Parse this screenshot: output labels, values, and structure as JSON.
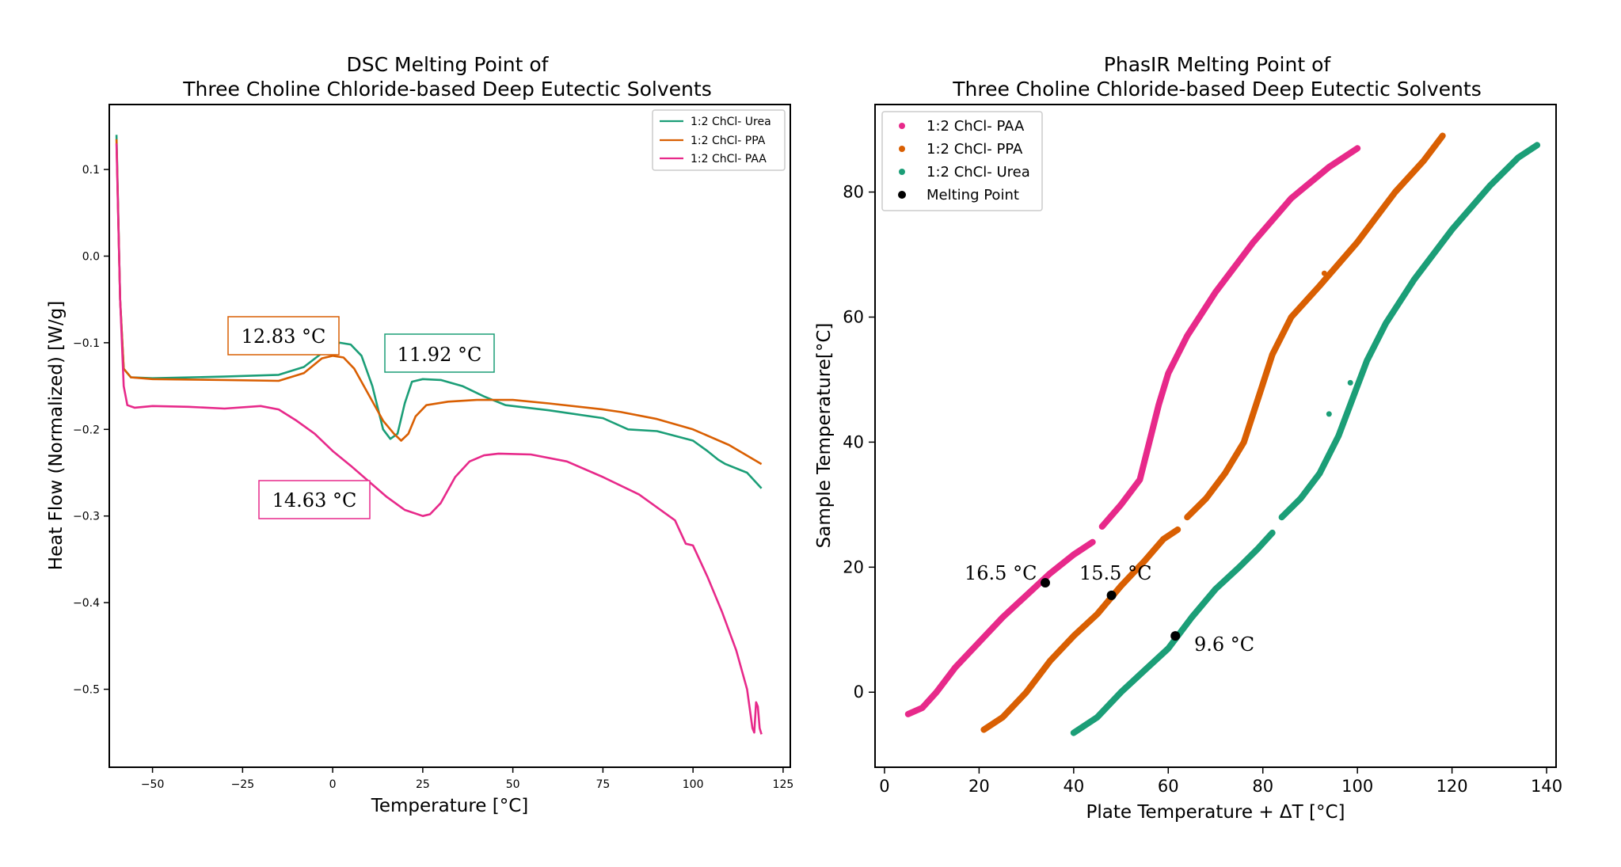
{
  "chart_data": [
    {
      "type": "line",
      "title": [
        "DSC Melting Point of",
        "Three Choline Chloride-based Deep Eutectic Solvents"
      ],
      "xlabel": "Temperature [°C]",
      "ylabel": "Heat Flow (Normalized) [W/g]",
      "xlim": [
        -62,
        127
      ],
      "ylim": [
        -0.59,
        0.175
      ],
      "xticks": [
        -50,
        -25,
        0,
        25,
        50,
        75,
        100,
        125
      ],
      "xtick_labels": [
        "−50",
        "−25",
        "0",
        "25",
        "50",
        "75",
        "100",
        "125"
      ],
      "yticks": [
        0.1,
        0.0,
        -0.1,
        -0.2,
        -0.3,
        -0.4,
        -0.5
      ],
      "ytick_labels": [
        "0.1",
        "0.0",
        "−0.1",
        "−0.2",
        "−0.3",
        "−0.4",
        "−0.5"
      ],
      "grid": false,
      "legend_position": "top-right",
      "series": [
        {
          "name": "1:2 ChCl- Urea",
          "color": "#1b9e77",
          "points": [
            [
              -60,
              0.14
            ],
            [
              -59,
              -0.05
            ],
            [
              -58,
              -0.13
            ],
            [
              -56,
              -0.14
            ],
            [
              -50,
              -0.141
            ],
            [
              -30,
              -0.139
            ],
            [
              -15,
              -0.137
            ],
            [
              -8,
              -0.128
            ],
            [
              -3,
              -0.112
            ],
            [
              0,
              -0.103
            ],
            [
              2,
              -0.1
            ],
            [
              5,
              -0.102
            ],
            [
              8,
              -0.115
            ],
            [
              11,
              -0.15
            ],
            [
              14,
              -0.2
            ],
            [
              16,
              -0.211
            ],
            [
              18,
              -0.205
            ],
            [
              20,
              -0.17
            ],
            [
              22,
              -0.145
            ],
            [
              25,
              -0.142
            ],
            [
              30,
              -0.143
            ],
            [
              36,
              -0.15
            ],
            [
              42,
              -0.162
            ],
            [
              48,
              -0.172
            ],
            [
              60,
              -0.178
            ],
            [
              75,
              -0.187
            ],
            [
              82,
              -0.2
            ],
            [
              90,
              -0.202
            ],
            [
              100,
              -0.213
            ],
            [
              104,
              -0.225
            ],
            [
              107,
              -0.235
            ],
            [
              109,
              -0.24
            ],
            [
              115,
              -0.25
            ],
            [
              119,
              -0.268
            ]
          ]
        },
        {
          "name": "1:2 ChCl- PPA",
          "color": "#d95f02",
          "points": [
            [
              -60,
              0.135
            ],
            [
              -59,
              -0.05
            ],
            [
              -58,
              -0.13
            ],
            [
              -56,
              -0.14
            ],
            [
              -50,
              -0.142
            ],
            [
              -30,
              -0.143
            ],
            [
              -15,
              -0.144
            ],
            [
              -8,
              -0.135
            ],
            [
              -3,
              -0.118
            ],
            [
              0,
              -0.115
            ],
            [
              3,
              -0.117
            ],
            [
              6,
              -0.13
            ],
            [
              10,
              -0.16
            ],
            [
              14,
              -0.19
            ],
            [
              17,
              -0.205
            ],
            [
              19,
              -0.213
            ],
            [
              21,
              -0.205
            ],
            [
              23,
              -0.185
            ],
            [
              26,
              -0.172
            ],
            [
              32,
              -0.168
            ],
            [
              40,
              -0.166
            ],
            [
              50,
              -0.166
            ],
            [
              60,
              -0.17
            ],
            [
              75,
              -0.177
            ],
            [
              80,
              -0.18
            ],
            [
              90,
              -0.188
            ],
            [
              100,
              -0.2
            ],
            [
              110,
              -0.218
            ],
            [
              119,
              -0.24
            ]
          ]
        },
        {
          "name": "1:2 ChCl- PAA",
          "color": "#e7298a",
          "points": [
            [
              -60,
              0.13
            ],
            [
              -59,
              -0.05
            ],
            [
              -58,
              -0.15
            ],
            [
              -57,
              -0.172
            ],
            [
              -55,
              -0.175
            ],
            [
              -50,
              -0.173
            ],
            [
              -40,
              -0.174
            ],
            [
              -30,
              -0.176
            ],
            [
              -20,
              -0.173
            ],
            [
              -15,
              -0.177
            ],
            [
              -10,
              -0.19
            ],
            [
              -5,
              -0.205
            ],
            [
              0,
              -0.225
            ],
            [
              5,
              -0.242
            ],
            [
              10,
              -0.26
            ],
            [
              15,
              -0.278
            ],
            [
              20,
              -0.293
            ],
            [
              25,
              -0.3
            ],
            [
              27,
              -0.298
            ],
            [
              30,
              -0.285
            ],
            [
              34,
              -0.255
            ],
            [
              38,
              -0.237
            ],
            [
              42,
              -0.23
            ],
            [
              46,
              -0.228
            ],
            [
              55,
              -0.229
            ],
            [
              65,
              -0.237
            ],
            [
              75,
              -0.255
            ],
            [
              85,
              -0.275
            ],
            [
              95,
              -0.305
            ],
            [
              98,
              -0.332
            ],
            [
              100,
              -0.334
            ],
            [
              104,
              -0.37
            ],
            [
              108,
              -0.41
            ],
            [
              112,
              -0.455
            ],
            [
              115,
              -0.5
            ],
            [
              116.5,
              -0.545
            ],
            [
              117,
              -0.55
            ],
            [
              117.5,
              -0.515
            ],
            [
              118,
              -0.52
            ],
            [
              118.5,
              -0.545
            ],
            [
              119,
              -0.552
            ]
          ]
        }
      ],
      "annotations": [
        {
          "text": "12.83 °C",
          "color": "#d95f02"
        },
        {
          "text": "11.92 °C",
          "color": "#1b9e77"
        },
        {
          "text": "14.63 °C",
          "color": "#e7298a"
        }
      ]
    },
    {
      "type": "scatter",
      "title": [
        "PhasIR Melting Point of",
        "Three Choline Chloride-based Deep Eutectic Solvents"
      ],
      "xlabel": "Plate Temperature + ΔT [°C]",
      "ylabel": "Sample Temperature[°C]",
      "xlim": [
        -2,
        142
      ],
      "ylim": [
        -12,
        94
      ],
      "xticks": [
        0,
        20,
        40,
        60,
        80,
        100,
        120,
        140
      ],
      "xtick_labels": [
        "0",
        "20",
        "40",
        "60",
        "80",
        "100",
        "120",
        "140"
      ],
      "yticks": [
        0,
        20,
        40,
        60,
        80
      ],
      "ytick_labels": [
        "0",
        "20",
        "40",
        "60",
        "80"
      ],
      "grid": false,
      "legend_position": "top-left",
      "series": [
        {
          "name": "1:2 ChCl- PAA",
          "color": "#e7298a",
          "segments": [
            [
              [
                5,
                -3.5
              ],
              [
                8,
                -2.5
              ],
              [
                11,
                0
              ],
              [
                15,
                4
              ],
              [
                20,
                8
              ],
              [
                25,
                12
              ],
              [
                30,
                15.5
              ],
              [
                35,
                19
              ],
              [
                40,
                22
              ],
              [
                44,
                24
              ]
            ],
            [
              [
                46,
                26.5
              ],
              [
                50,
                30
              ],
              [
                54,
                34
              ],
              [
                56,
                40
              ],
              [
                58,
                46
              ],
              [
                60,
                51
              ],
              [
                64,
                57
              ],
              [
                70,
                64
              ],
              [
                78,
                72
              ],
              [
                86,
                79
              ],
              [
                94,
                84
              ],
              [
                100,
                87
              ]
            ]
          ]
        },
        {
          "name": "1:2 ChCl- PPA",
          "color": "#d95f02",
          "segments": [
            [
              [
                21,
                -6
              ],
              [
                25,
                -4
              ],
              [
                30,
                0
              ],
              [
                35,
                5
              ],
              [
                40,
                9
              ],
              [
                45,
                12.5
              ],
              [
                50,
                17
              ],
              [
                55,
                21
              ],
              [
                59,
                24.5
              ],
              [
                62,
                26
              ]
            ],
            [
              [
                64,
                28
              ],
              [
                68,
                31
              ],
              [
                72,
                35
              ],
              [
                76,
                40
              ],
              [
                79,
                47
              ],
              [
                82,
                54
              ],
              [
                86,
                60
              ],
              [
                92,
                65
              ],
              [
                100,
                72
              ],
              [
                108,
                80
              ],
              [
                114,
                85
              ],
              [
                118,
                89
              ]
            ]
          ],
          "outliers": [
            [
              93,
              67
            ]
          ]
        },
        {
          "name": "1:2 ChCl- Urea",
          "color": "#1b9e77",
          "segments": [
            [
              [
                40,
                -6.5
              ],
              [
                45,
                -4
              ],
              [
                50,
                0
              ],
              [
                55,
                3.5
              ],
              [
                60,
                7
              ],
              [
                65,
                12
              ],
              [
                70,
                16.5
              ],
              [
                75,
                20
              ],
              [
                79,
                23
              ],
              [
                82,
                25.5
              ]
            ],
            [
              [
                84,
                28
              ],
              [
                88,
                31
              ],
              [
                92,
                35
              ],
              [
                96,
                41
              ],
              [
                99,
                47
              ],
              [
                102,
                53
              ],
              [
                106,
                59
              ],
              [
                112,
                66
              ],
              [
                120,
                74
              ],
              [
                128,
                81
              ],
              [
                134,
                85.5
              ],
              [
                138,
                87.5
              ]
            ]
          ],
          "outliers": [
            [
              94,
              44.5
            ],
            [
              98.5,
              49.5
            ]
          ]
        },
        {
          "name": "Melting Point",
          "color": "#000000",
          "points": [
            [
              34,
              17.5
            ],
            [
              48,
              15.5
            ],
            [
              61.5,
              9
            ]
          ]
        }
      ],
      "annotations": [
        {
          "text": "16.5 °C"
        },
        {
          "text": "15.5 °C"
        },
        {
          "text": "9.6 °C"
        }
      ]
    }
  ]
}
